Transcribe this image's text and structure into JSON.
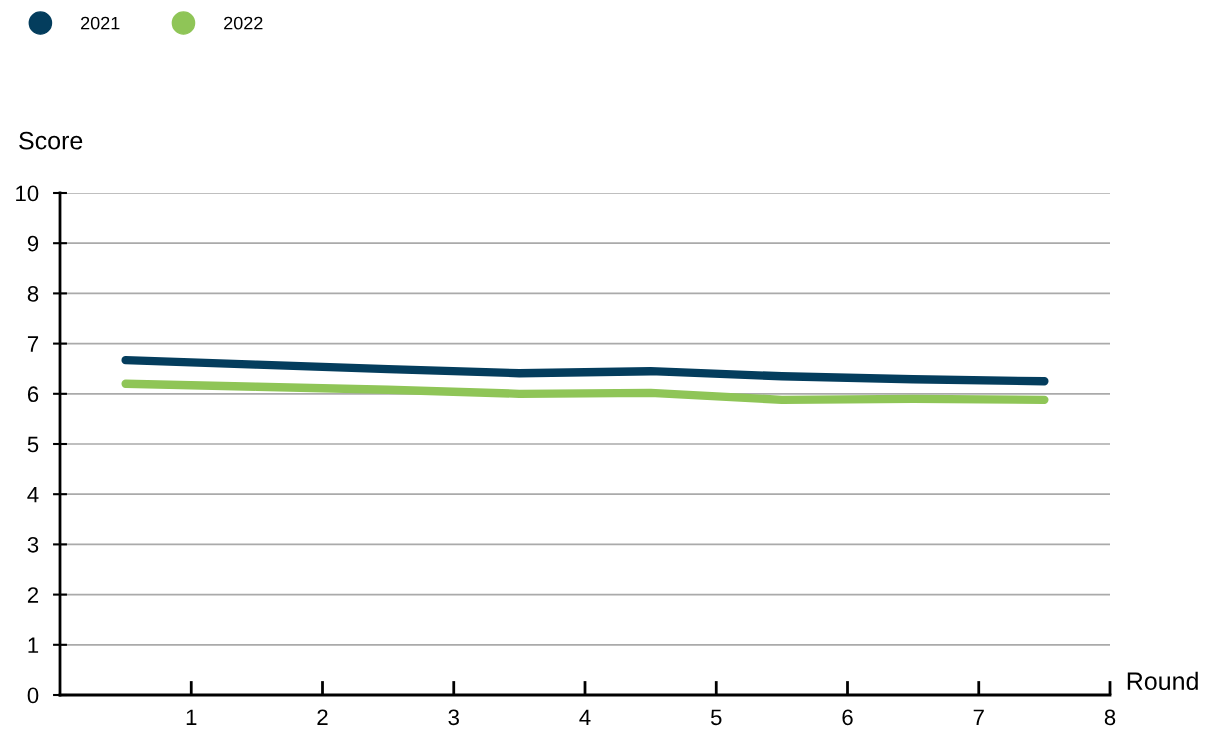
{
  "chart_data": {
    "type": "line",
    "xlabel": "Round",
    "ylabel": "Score",
    "x": [
      0.5,
      1.5,
      2.5,
      3.5,
      4.5,
      5.5,
      6.5,
      7.5
    ],
    "series": [
      {
        "name": "2021",
        "color": "#043d5d",
        "values": [
          6.67,
          6.58,
          6.49,
          6.41,
          6.45,
          6.35,
          6.29,
          6.25
        ]
      },
      {
        "name": "2022",
        "color": "#8fc557",
        "values": [
          6.2,
          6.14,
          6.08,
          6.0,
          6.02,
          5.88,
          5.9,
          5.88
        ]
      }
    ],
    "xlim": [
      0,
      8
    ],
    "xticks": [
      1,
      2,
      3,
      4,
      5,
      6,
      7,
      8
    ],
    "ylim": [
      0,
      10
    ],
    "yticks": [
      0,
      1,
      2,
      3,
      4,
      5,
      6,
      7,
      8,
      9,
      10
    ],
    "grid": "y",
    "legend": "top left",
    "marker": "none",
    "line_style": "solid"
  }
}
